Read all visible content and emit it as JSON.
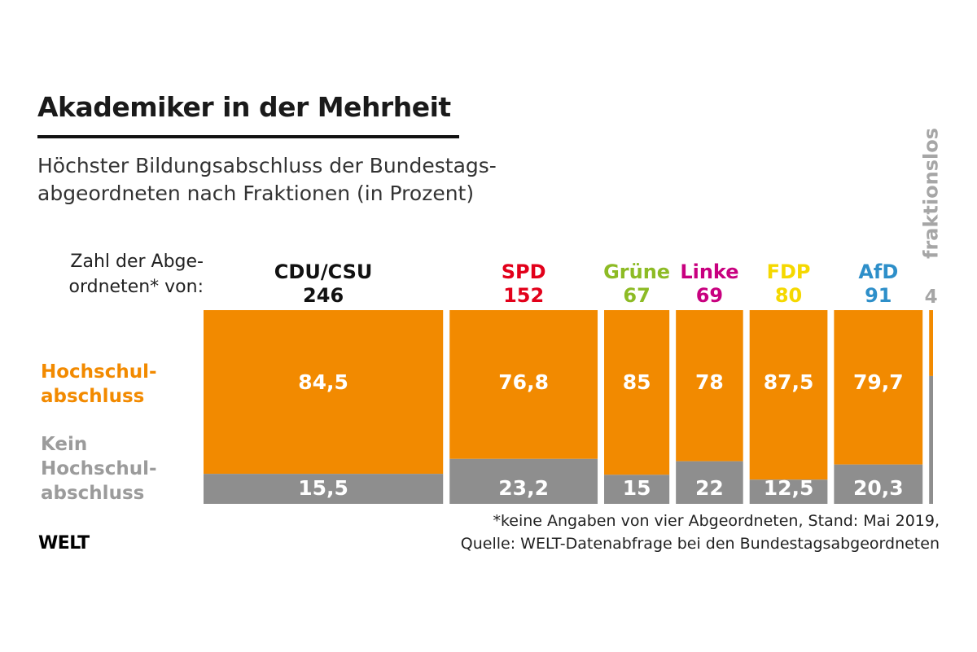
{
  "title": "Akademiker in der Mehrheit",
  "subtitle_line1": "Höchster Bildungsabschluss der Bundestags-",
  "subtitle_line2": "abgeordneten nach Fraktionen (in Prozent)",
  "count_label_line1": "Zahl der Abge-",
  "count_label_line2": "ordneten* von:",
  "legend": {
    "hochschul_line1": "Hochschul-",
    "hochschul_line2": "abschluss",
    "kein_line1": "Kein",
    "kein_line2": "Hochschul-",
    "kein_line3": "abschluss"
  },
  "footnote": "*keine Angaben von vier Abgeordneten, Stand: Mai 2019,",
  "source": "Quelle: WELT-Datenabfrage bei den Bundestagsabgeordneten",
  "logo": "WELT",
  "colors": {
    "hochschul": "#f28a00",
    "kein": "#8e8e8e",
    "fraktionslos": "#a6a6a6"
  },
  "chart_data": {
    "type": "bar",
    "subtype": "marimekko",
    "title": "Akademiker in der Mehrheit",
    "ylabel": "Prozent",
    "ylim": [
      0,
      100
    ],
    "categories": [
      "CDU/CSU",
      "SPD",
      "Grüne",
      "Linke",
      "FDP",
      "AfD",
      "fraktionslos"
    ],
    "member_counts": [
      "246",
      "152",
      "67",
      "69",
      "80",
      "91",
      "4"
    ],
    "party_colors": [
      "#111111",
      "#e2001a",
      "#8dbb25",
      "#c8007f",
      "#f5d800",
      "#2e8fc9",
      "#a6a6a6"
    ],
    "series": [
      {
        "name": "Hochschulabschluss",
        "values": [
          84.5,
          76.8,
          85,
          78,
          87.5,
          79.7,
          null
        ],
        "labels": [
          "84,5",
          "76,8",
          "85",
          "78",
          "87,5",
          "79,7",
          ""
        ]
      },
      {
        "name": "Kein Hochschulabschluss",
        "values": [
          15.5,
          23.2,
          15,
          22,
          12.5,
          20.3,
          null
        ],
        "labels": [
          "15,5",
          "23,2",
          "15",
          "22",
          "12,5",
          "20,3",
          ""
        ]
      }
    ]
  }
}
